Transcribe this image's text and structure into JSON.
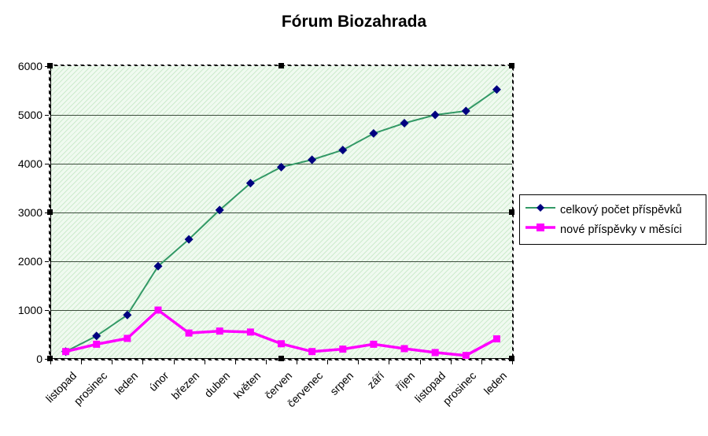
{
  "title": "Fórum Biozahrada",
  "chart_data": {
    "type": "line",
    "title": "Fórum Biozahrada",
    "categories": [
      "listopad",
      "prosinec",
      "leden",
      "únor",
      "březen",
      "duben",
      "květen",
      "červen",
      "červenec",
      "srpen",
      "září",
      "říjen",
      "listopad",
      "prosinec",
      "leden"
    ],
    "series": [
      {
        "name": "celkový počet příspěvků",
        "marker": "diamond",
        "line_color": "#339966",
        "marker_color": "#000080",
        "values": [
          150,
          470,
          900,
          1900,
          2450,
          3050,
          3600,
          3930,
          4080,
          4280,
          4620,
          4830,
          5000,
          5080,
          5520
        ]
      },
      {
        "name": "nové příspěvky v měsíci",
        "marker": "square",
        "line_color": "#FF00FF",
        "marker_color": "#FF00FF",
        "values": [
          150,
          300,
          420,
          1000,
          530,
          570,
          550,
          310,
          150,
          200,
          300,
          210,
          130,
          70,
          410
        ]
      }
    ],
    "xlabel": "",
    "ylabel": "",
    "ylim": [
      0,
      6000
    ],
    "yticks": [
      0,
      1000,
      2000,
      3000,
      4000,
      5000,
      6000
    ],
    "grid": true,
    "legend_position": "right",
    "plot_bg_color": "#f0faf0",
    "hatch_color": "#cdebcd",
    "gridline_color": "#3e4e3e",
    "axis_color": "#000000"
  }
}
